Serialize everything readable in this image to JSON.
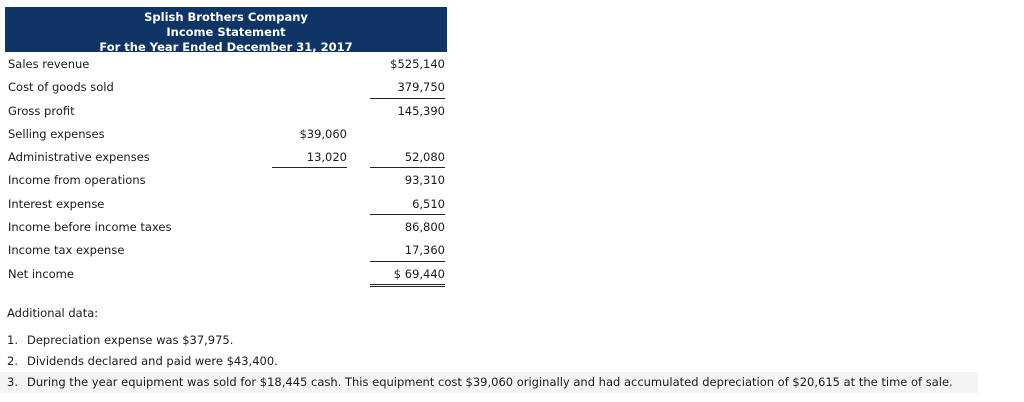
{
  "header": {
    "company": "Splish Brothers Company",
    "statement": "Income Statement",
    "period": "For the Year Ended December 31, 2017"
  },
  "colors": {
    "header_bg": "#0f3566",
    "header_text": "#ffffff",
    "shaded_row": "#f4f4f4"
  },
  "rows": [
    {
      "label": "Sales revenue",
      "col1": "",
      "col2": "$525,140"
    },
    {
      "label": "Cost of goods sold",
      "col1": "",
      "col2": "379,750"
    },
    {
      "label": "Gross profit",
      "col1": "",
      "col2": "145,390"
    },
    {
      "label": "Selling expenses",
      "col1": "$39,060",
      "col2": ""
    },
    {
      "label": "Administrative expenses",
      "col1": "13,020",
      "col2": "52,080"
    },
    {
      "label": "Income from operations",
      "col1": "",
      "col2": "93,310"
    },
    {
      "label": "Interest expense",
      "col1": "",
      "col2": "6,510"
    },
    {
      "label": "Income before income taxes",
      "col1": "",
      "col2": "86,800"
    },
    {
      "label": "Income tax expense",
      "col1": "",
      "col2": "17,360"
    },
    {
      "label": "Net income",
      "col1": "",
      "col2": "$ 69,440"
    }
  ],
  "additional": {
    "title": "Additional data:",
    "items": [
      {
        "num": "1.",
        "text": "Depreciation expense was $37,975."
      },
      {
        "num": "2.",
        "text": "Dividends declared and paid were $43,400."
      },
      {
        "num": "3.",
        "text": "During the year equipment was sold for $18,445 cash. This equipment cost $39,060 originally and had accumulated depreciation of $20,615 at the time of sale."
      }
    ]
  }
}
